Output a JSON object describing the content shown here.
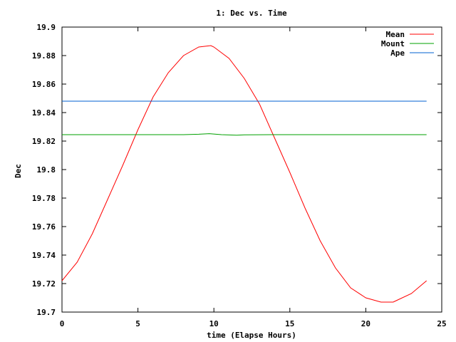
{
  "chart_data": {
    "type": "line",
    "title": "1: Dec vs. Time",
    "xlabel": "time (Elapse Hours)",
    "ylabel": "Dec",
    "xlim": [
      0,
      25
    ],
    "ylim": [
      19.7,
      19.9
    ],
    "xticks": [
      "0",
      "5",
      "10",
      "15",
      "20",
      "25"
    ],
    "yticks": [
      "19.7",
      "19.72",
      "19.74",
      "19.76",
      "19.78",
      "19.8",
      "19.82",
      "19.84",
      "19.86",
      "19.88",
      "19.9"
    ],
    "legend_position": "top-right",
    "grid": false,
    "series": [
      {
        "name": "Mean",
        "color": "#ff0000",
        "x": [
          0,
          1,
          2,
          3,
          4,
          5,
          6,
          7,
          8,
          9,
          9.8,
          10,
          11,
          12,
          13,
          14,
          15,
          16,
          17,
          18,
          19,
          20,
          21,
          21.8,
          22,
          23,
          24
        ],
        "y": [
          19.722,
          19.735,
          19.755,
          19.779,
          19.803,
          19.828,
          19.851,
          19.868,
          19.88,
          19.886,
          19.887,
          19.886,
          19.878,
          19.864,
          19.846,
          19.822,
          19.798,
          19.773,
          19.75,
          19.731,
          19.717,
          19.71,
          19.707,
          19.707,
          19.708,
          19.713,
          19.722
        ]
      },
      {
        "name": "Mount",
        "color": "#00a000",
        "x": [
          0,
          2,
          4,
          6,
          8,
          9,
          9.7,
          10.5,
          11,
          11.5,
          12,
          14,
          16,
          18,
          20,
          22,
          24
        ],
        "y": [
          19.8245,
          19.8245,
          19.8245,
          19.8245,
          19.8245,
          19.8248,
          19.8252,
          19.8245,
          19.8243,
          19.8241,
          19.8244,
          19.8245,
          19.8245,
          19.8245,
          19.8245,
          19.8245,
          19.8245
        ]
      },
      {
        "name": "Ape",
        "color": "#0060d0",
        "x": [
          0,
          24
        ],
        "y": [
          19.848,
          19.848
        ]
      }
    ]
  }
}
